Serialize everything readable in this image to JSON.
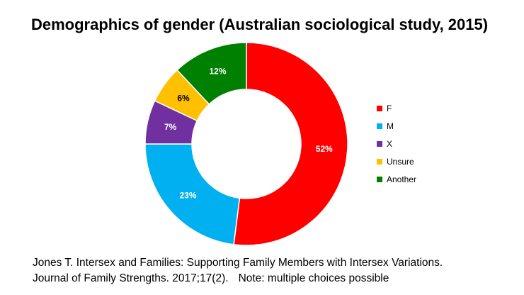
{
  "chart_data": {
    "type": "pie",
    "style": "donut",
    "title": "Demographics of gender (Australian sociological study, 2015)",
    "slices": [
      {
        "label": "F",
        "value": 52,
        "display": "52%",
        "color": "#ff0000"
      },
      {
        "label": "M",
        "value": 23,
        "display": "23%",
        "color": "#00b0f0"
      },
      {
        "label": "X",
        "value": 7,
        "display": "7%",
        "color": "#7030a0"
      },
      {
        "label": "Unsure",
        "value": 6,
        "display": "6%",
        "color": "#ffc000"
      },
      {
        "label": "Another",
        "value": 12,
        "display": "12%",
        "color": "#008000"
      }
    ],
    "legend_position": "right"
  },
  "caption": {
    "line1": "Jones T. Intersex and Families: Supporting Family Members with Intersex Variations.",
    "line2": "Journal of Family Strengths. 2017;17(2).",
    "note": "Note: multiple choices possible"
  }
}
